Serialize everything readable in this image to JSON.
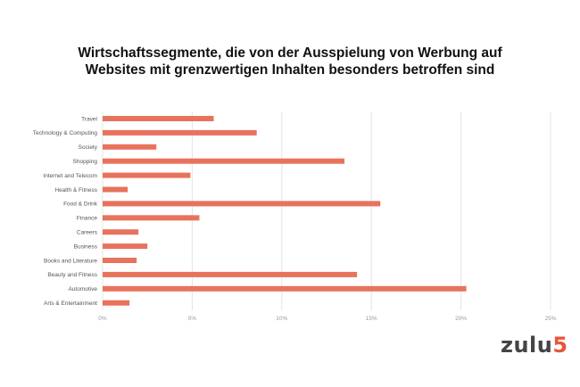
{
  "chart_data": {
    "type": "bar",
    "orientation": "horizontal",
    "title_lines": [
      "Wirtschaftssegmente, die von der Ausspielung von Werbung auf",
      "Websites mit grenzwertigen Inhalten besonders betroffen sind"
    ],
    "categories": [
      "Travel",
      "Technology & Computing",
      "Society",
      "Shopping",
      "Internet and Telecom",
      "Health & Fitness",
      "Food & Drink",
      "Finance",
      "Careers",
      "Business",
      "Books and Literature",
      "Beauty and Fitness",
      "Automotive",
      "Arts & Entertainment"
    ],
    "values": [
      6.2,
      8.6,
      3.0,
      13.5,
      4.9,
      1.4,
      15.5,
      5.4,
      2.0,
      2.5,
      1.9,
      14.2,
      20.3,
      1.5
    ],
    "xlim": [
      0,
      25
    ],
    "xticks": [
      "0%",
      "5%",
      "10%",
      "15%",
      "20%",
      "25%"
    ],
    "grid": "vertical",
    "bar_color": "#e8735c"
  },
  "logo": {
    "word": "zulu",
    "num": "5"
  }
}
